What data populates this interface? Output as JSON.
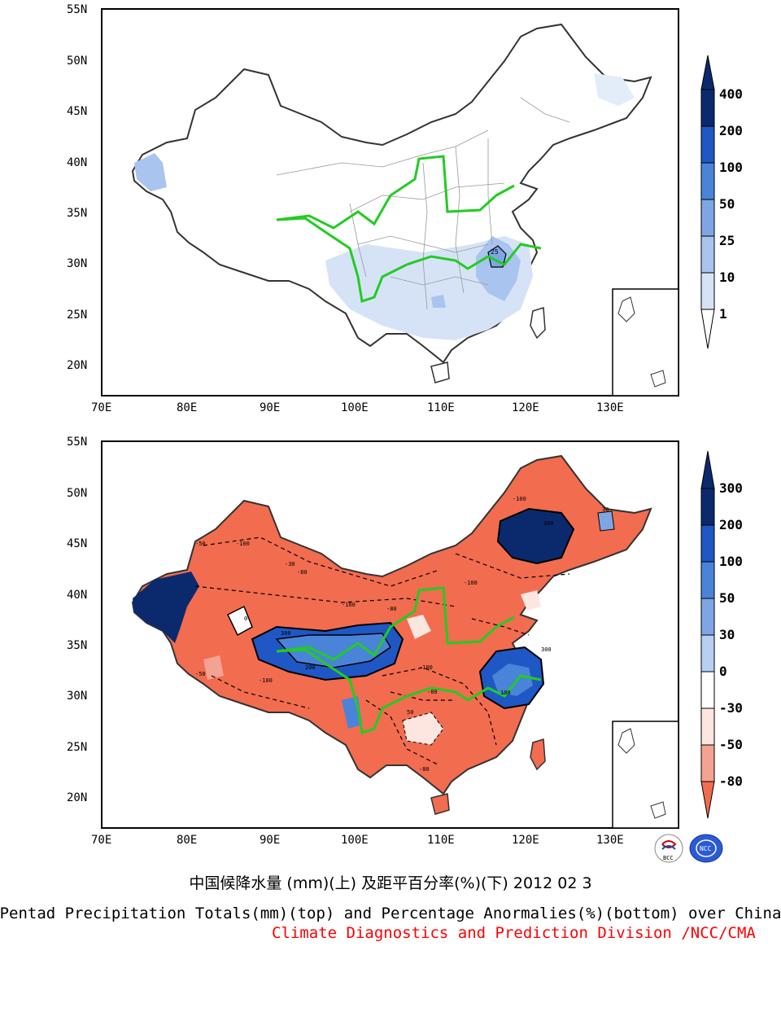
{
  "maps": [
    {
      "id": "top",
      "lat_ticks": [
        "55N",
        "50N",
        "45N",
        "40N",
        "35N",
        "30N",
        "25N",
        "20N"
      ],
      "lon_ticks": [
        "70E",
        "80E",
        "90E",
        "100E",
        "110E",
        "120E",
        "130E"
      ],
      "colorbar_labels": [
        "400",
        "200",
        "100",
        "50",
        "25",
        "10",
        "1"
      ],
      "colorbar_colors": [
        "#0b2a6e",
        "#1f57c4",
        "#4a84d9",
        "#7ea6e4",
        "#a9c4ee",
        "#d6e3f7",
        "#ffffff"
      ],
      "contour_label": "25"
    },
    {
      "id": "bottom",
      "lat_ticks": [
        "55N",
        "50N",
        "45N",
        "40N",
        "35N",
        "30N",
        "25N",
        "20N"
      ],
      "lon_ticks": [
        "70E",
        "80E",
        "90E",
        "100E",
        "110E",
        "120E",
        "130E"
      ],
      "colorbar_labels": [
        "300",
        "200",
        "100",
        "50",
        "30",
        "0",
        "-30",
        "-50",
        "-80"
      ],
      "colorbar_colors": [
        "#0b2a6e",
        "#1f57c4",
        "#4a84d9",
        "#7ea6e4",
        "#b7cff2",
        "#ffffff",
        "#fde6e0",
        "#f4a291",
        "#f26c4f",
        "#f26c4f"
      ],
      "contour_labels": [
        "-100",
        "-50",
        "-30",
        "-80",
        "0",
        "30",
        "300",
        "100",
        "50",
        "200"
      ]
    }
  ],
  "caption_cn": "中国候降水量 (mm)(上) 及距平百分率(%)(下) 2012 02 3",
  "caption_en": "Pentad Precipitation Totals(mm)(top) and Percentage Anormalies(%)(bottom) over China",
  "caption_division": "Climate Diagnostics and Prediction Division /NCC/CMA",
  "logos": {
    "left": "BCC",
    "right": "NCC"
  },
  "colors": {
    "river": "#22cc22",
    "division_text": "#ff0000"
  }
}
